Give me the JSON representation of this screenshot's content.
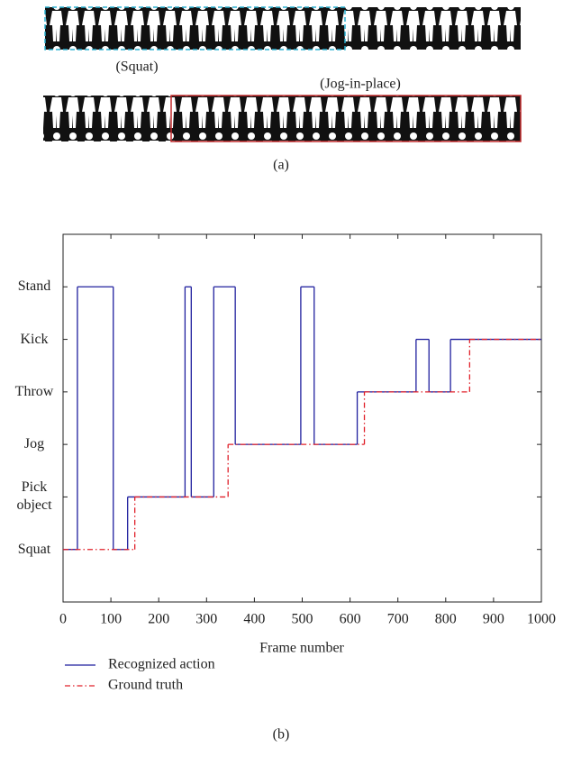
{
  "panel_a": {
    "squat_label": "(Squat)",
    "jog_label": "(Jog-in-place)",
    "caption": "(a)"
  },
  "chart_data": {
    "type": "step",
    "xlabel": "Frame number",
    "xlim": [
      0,
      1000
    ],
    "xticks": [
      0,
      100,
      200,
      300,
      400,
      500,
      600,
      700,
      800,
      900,
      1000
    ],
    "ylim": [
      0,
      7
    ],
    "yticks": [
      {
        "value": 1,
        "label": "Squat"
      },
      {
        "value": 2,
        "label": "Pick object"
      },
      {
        "value": 3,
        "label": "Jog"
      },
      {
        "value": 4,
        "label": "Throw"
      },
      {
        "value": 5,
        "label": "Kick"
      },
      {
        "value": 6,
        "label": "Stand"
      }
    ],
    "series": [
      {
        "name": "Recognized action",
        "color": "#1f1f9e",
        "dash": "solid",
        "x": [
          0,
          30,
          105,
          135,
          255,
          268,
          315,
          360,
          497,
          525,
          615,
          738,
          765,
          810
        ],
        "values": [
          1,
          6,
          1,
          2,
          6,
          2,
          6,
          3,
          6,
          3,
          4,
          5,
          4,
          5
        ]
      },
      {
        "name": "Ground truth",
        "color": "#e0202a",
        "dash": "dashdot",
        "x": [
          0,
          150,
          345,
          630,
          850
        ],
        "values": [
          1,
          2,
          3,
          4,
          5
        ]
      }
    ]
  },
  "panel_b_caption": "(b)"
}
